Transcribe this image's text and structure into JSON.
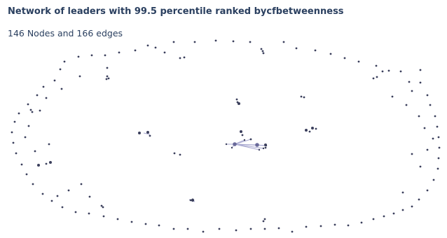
{
  "title": "Network of leaders with 99.5 percentile ranked bycfbetweenness",
  "subtitle": "146 Nodes and 166 edges",
  "colors": {
    "node": "#3b3f5c",
    "hub": "#6a6a9a",
    "edge": "#a8a8d0",
    "text": "#2a3f5f"
  },
  "chart_data": {
    "type": "scatter",
    "description_kind": "network",
    "node_count": 146,
    "edge_count": 166,
    "axes_visible": false,
    "grid": false,
    "legend": "none"
  }
}
